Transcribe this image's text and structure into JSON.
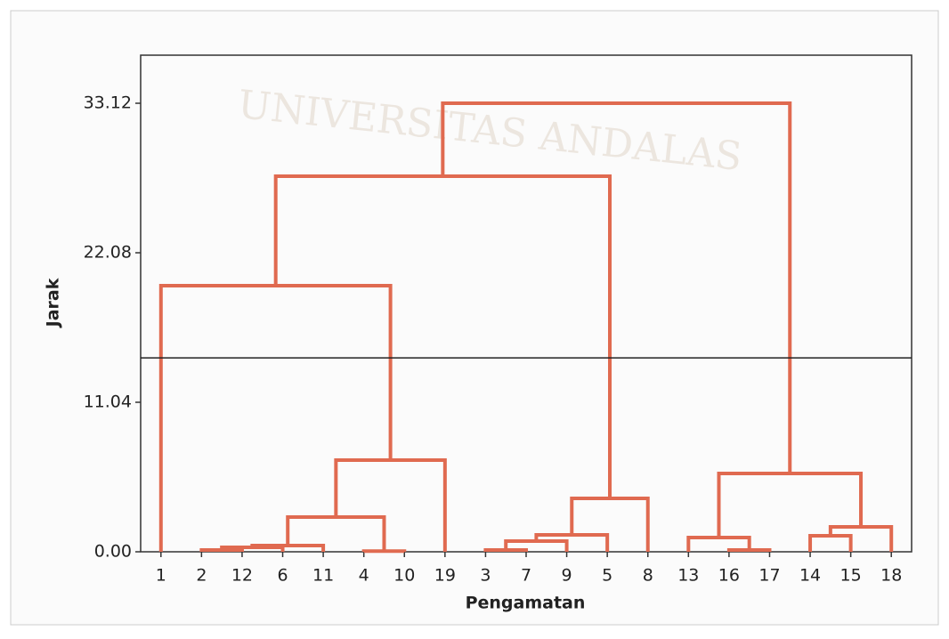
{
  "chart_data": {
    "type": "dendrogram",
    "watermark": "UNIVERSITAS ANDALAS",
    "ylabel": "Jarak",
    "xlabel": "Pengamatan",
    "leaves": [
      "1",
      "2",
      "12",
      "6",
      "11",
      "4",
      "10",
      "19",
      "3",
      "7",
      "9",
      "5",
      "8",
      "13",
      "16",
      "17",
      "14",
      "15",
      "18"
    ],
    "merges": [
      {
        "left": 1,
        "right": 2,
        "height": 0.13
      },
      {
        "left": 19,
        "right": 3,
        "height": 0.33
      },
      {
        "left": 20,
        "right": 4,
        "height": 0.46
      },
      {
        "left": 5,
        "right": 6,
        "height": 0.05
      },
      {
        "left": 21,
        "right": 22,
        "height": 2.56
      },
      {
        "left": 23,
        "right": 7,
        "height": 6.77
      },
      {
        "left": 0,
        "right": 24,
        "height": 19.65
      },
      {
        "left": 8,
        "right": 9,
        "height": 0.13
      },
      {
        "left": 26,
        "right": 10,
        "height": 0.79
      },
      {
        "left": 27,
        "right": 11,
        "height": 1.25
      },
      {
        "left": 28,
        "right": 12,
        "height": 3.94
      },
      {
        "left": 25,
        "right": 29,
        "height": 27.73
      },
      {
        "left": 14,
        "right": 15,
        "height": 0.13
      },
      {
        "left": 13,
        "right": 31,
        "height": 1.05
      },
      {
        "left": 16,
        "right": 17,
        "height": 1.18
      },
      {
        "left": 33,
        "right": 18,
        "height": 1.84
      },
      {
        "left": 32,
        "right": 34,
        "height": 5.78
      },
      {
        "left": 30,
        "right": 35,
        "height": 33.12
      }
    ],
    "color": "#e06a50",
    "cut_height": 14.32,
    "ylim": [
      0,
      36.67
    ],
    "yticks": [
      {
        "value": 0,
        "label": "0.00"
      },
      11.04,
      22.08,
      33.12
    ]
  }
}
